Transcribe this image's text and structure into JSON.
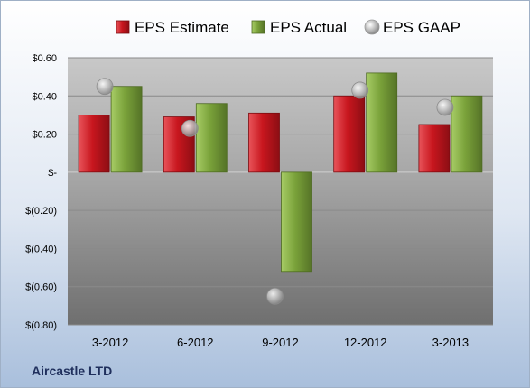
{
  "chart_data": {
    "type": "bar",
    "categories": [
      "3-2012",
      "6-2012",
      "9-2012",
      "12-2012",
      "3-2013"
    ],
    "series": [
      {
        "name": "EPS Estimate",
        "kind": "bar",
        "color": "#c0181f",
        "values": [
          0.3,
          0.29,
          0.31,
          0.4,
          0.25
        ]
      },
      {
        "name": "EPS Actual",
        "kind": "bar",
        "color": "#78a035",
        "values": [
          0.45,
          0.36,
          -0.52,
          0.52,
          0.4
        ]
      },
      {
        "name": "EPS GAAP",
        "kind": "marker",
        "color": "#a9a9a9",
        "values": [
          0.45,
          0.23,
          -0.65,
          0.43,
          0.34
        ]
      }
    ],
    "yticks": [
      {
        "value": 0.6,
        "label": "$0.60"
      },
      {
        "value": 0.4,
        "label": "$0.40"
      },
      {
        "value": 0.2,
        "label": "$0.20"
      },
      {
        "value": 0.0,
        "label": "$-"
      },
      {
        "value": -0.2,
        "label": "$(0.20)"
      },
      {
        "value": -0.4,
        "label": "$(0.40)"
      },
      {
        "value": -0.6,
        "label": "$(0.60)"
      },
      {
        "value": -0.8,
        "label": "$(0.80)"
      }
    ],
    "ylim": [
      -0.8,
      0.6
    ],
    "grid": true,
    "legend_position": "top",
    "title": "",
    "xlabel": "",
    "ylabel": ""
  },
  "footer": {
    "company": "Aircastle LTD"
  }
}
